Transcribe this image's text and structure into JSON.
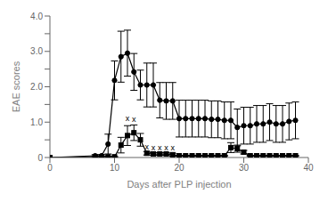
{
  "chart_data": {
    "type": "line",
    "xlabel": "Days after PLP injection",
    "ylabel": "EAE scores",
    "xlim": [
      0,
      40
    ],
    "ylim": [
      0,
      4.0
    ],
    "xticks": [
      0,
      10,
      20,
      30,
      40
    ],
    "yticks": [
      0,
      {
        "value": 0.5,
        "label": ""
      },
      {
        "value": 1.0,
        "label": "1.0"
      },
      {
        "value": 1.5,
        "label": ""
      },
      {
        "value": 2.0,
        "label": "2.0"
      },
      {
        "value": 2.5,
        "label": ""
      },
      {
        "value": 3.0,
        "label": "3.0"
      },
      {
        "value": 3.5,
        "label": ""
      },
      {
        "value": 4.0,
        "label": "4.0"
      }
    ],
    "grid": false,
    "x": [
      0,
      7,
      8,
      9,
      10,
      11,
      12,
      13,
      14,
      15,
      16,
      17,
      18,
      19,
      20,
      21,
      22,
      23,
      24,
      25,
      26,
      27,
      28,
      29,
      30,
      31,
      32,
      33,
      34,
      35,
      36,
      37,
      38
    ],
    "series": [
      {
        "color": "#000000",
        "marker": "circle",
        "line_style": "solid",
        "values": [
          0.0,
          0.05,
          0.05,
          0.38,
          2.18,
          2.85,
          2.95,
          2.42,
          2.05,
          2.05,
          2.05,
          1.62,
          1.6,
          1.6,
          1.1,
          1.1,
          1.1,
          1.1,
          1.1,
          1.08,
          1.08,
          1.05,
          1.05,
          0.85,
          0.9,
          0.9,
          0.95,
          0.95,
          1.0,
          0.95,
          0.95,
          1.02,
          1.05
        ],
        "error": [
          0.0,
          0.03,
          0.03,
          0.28,
          0.55,
          0.72,
          0.65,
          0.52,
          0.42,
          0.62,
          0.62,
          0.5,
          0.52,
          0.52,
          0.52,
          0.52,
          0.52,
          0.52,
          0.52,
          0.52,
          0.52,
          0.52,
          0.52,
          0.52,
          0.52,
          0.52,
          0.52,
          0.52,
          0.52,
          0.52,
          0.52,
          0.52,
          0.52
        ]
      },
      {
        "color": "#000000",
        "marker": "square",
        "line_style": "solid",
        "values": [
          0.0,
          0.02,
          0.02,
          0.02,
          0.02,
          0.35,
          0.62,
          0.7,
          0.5,
          0.12,
          0.1,
          0.1,
          0.1,
          0.08,
          0.05,
          0.05,
          0.05,
          0.05,
          0.05,
          0.05,
          0.05,
          0.05,
          0.28,
          0.25,
          0.15,
          0.05,
          0.05,
          0.05,
          0.05,
          0.05,
          0.05,
          0.05,
          0.05
        ],
        "error": [
          0.0,
          0.01,
          0.01,
          0.01,
          0.01,
          0.22,
          0.28,
          0.22,
          0.18,
          0.05,
          0.04,
          0.04,
          0.04,
          0.04,
          0.01,
          0.01,
          0.01,
          0.01,
          0.01,
          0.01,
          0.01,
          0.01,
          0.14,
          0.1,
          0.05,
          0.01,
          0.01,
          0.01,
          0.01,
          0.01,
          0.01,
          0.01,
          0.01
        ]
      }
    ],
    "annotations": [
      {
        "x": 12,
        "y": 1.0,
        "text": "x"
      },
      {
        "x": 13,
        "y": 0.98,
        "text": "x"
      },
      {
        "x": 15,
        "y": 0.2,
        "text": "x"
      },
      {
        "x": 16,
        "y": 0.17,
        "text": "x"
      },
      {
        "x": 17,
        "y": 0.17,
        "text": "x"
      },
      {
        "x": 18,
        "y": 0.17,
        "text": "x"
      },
      {
        "x": 19,
        "y": 0.17,
        "text": "x"
      }
    ]
  }
}
